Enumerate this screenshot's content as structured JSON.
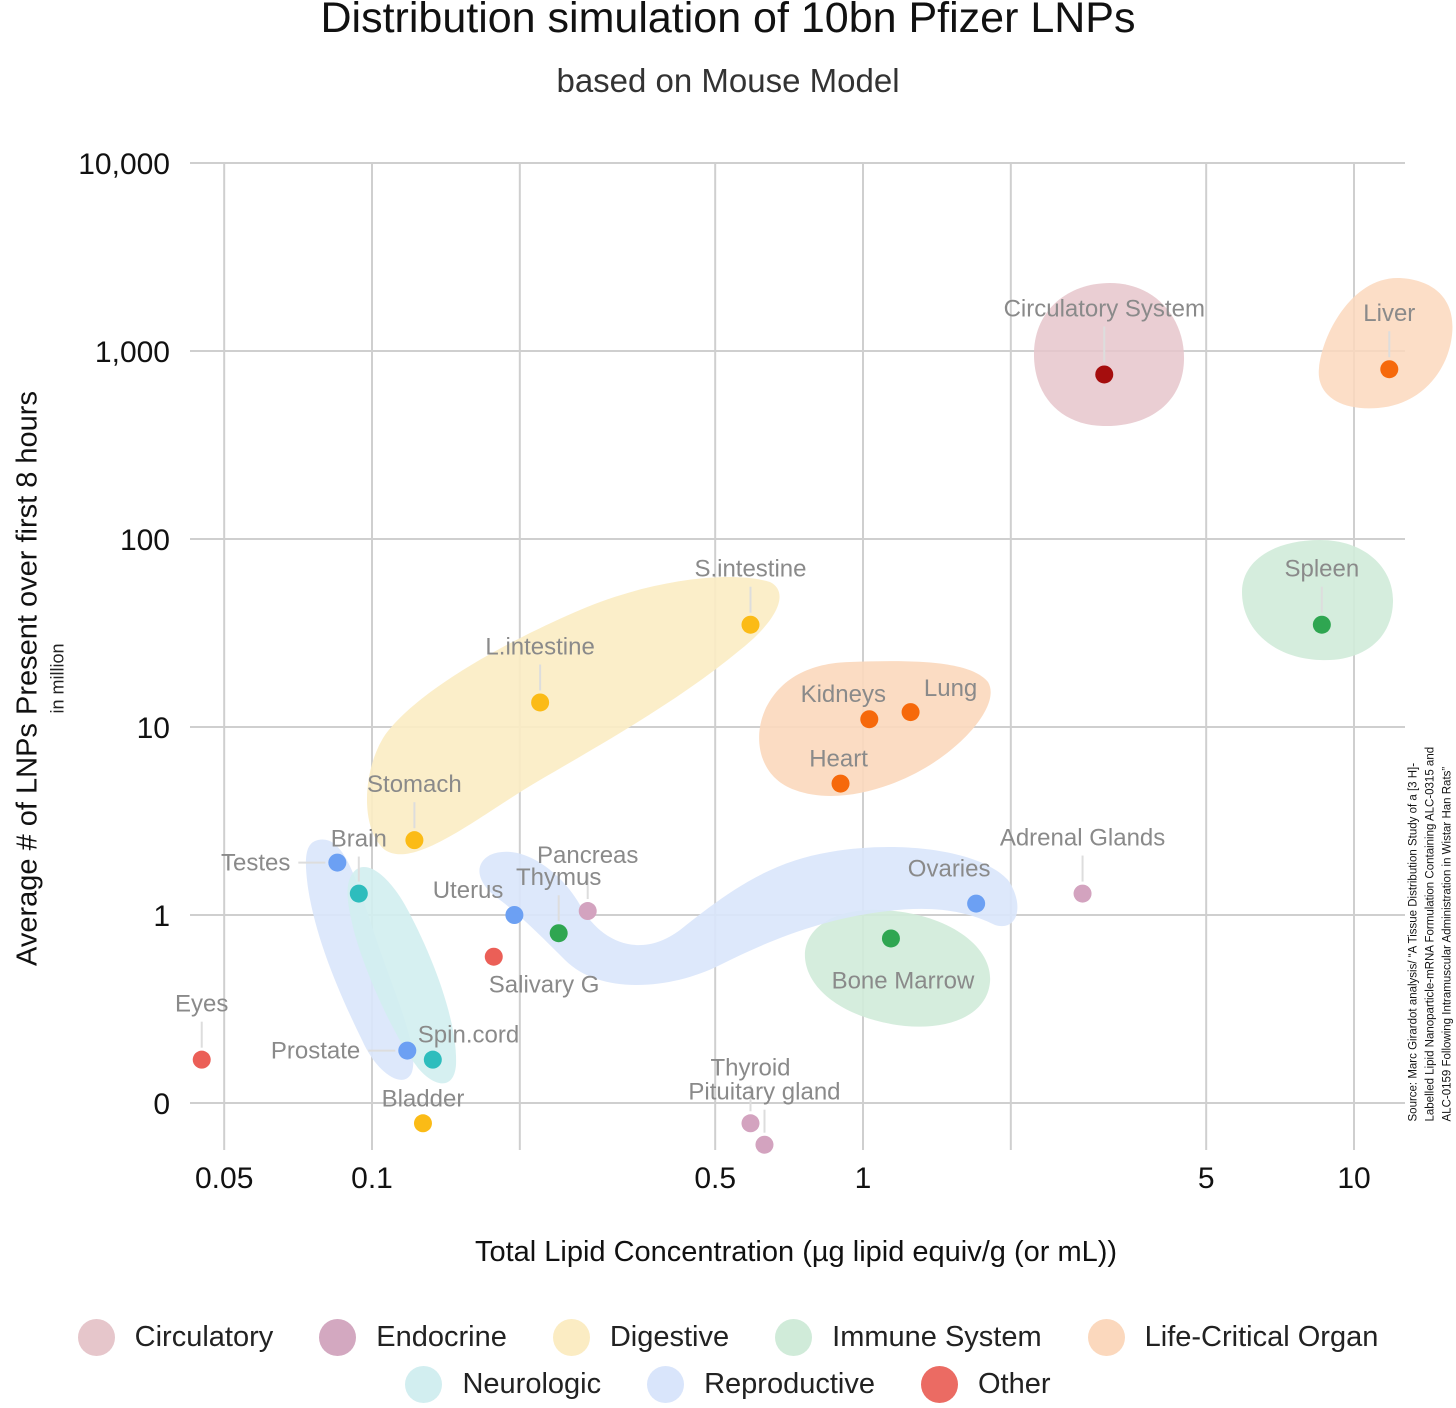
{
  "chart_data": {
    "type": "scatter",
    "title": "Distribution simulation of  10bn Pfizer LNPs",
    "subtitle": "based on Mouse Model",
    "xlabel": "Total Lipid Concentration (µg lipid equiv/g (or mL))",
    "ylabel": "Average # of LNPs Present over first 8 hours",
    "ylabel_unit": "in million",
    "x_scale": "log",
    "y_scale": "log",
    "xlim": [
      0.04,
      13
    ],
    "ylim": [
      0.0,
      10000
    ],
    "x_ticks": [
      0.05,
      0.1,
      0.5,
      1,
      5,
      10
    ],
    "x_tick_labels": [
      "0.05",
      "0.1",
      "0.5",
      "1",
      "5",
      "10"
    ],
    "x_gridlines": [
      0.05,
      0.1,
      0.2,
      0.5,
      1,
      2,
      5,
      10
    ],
    "y_ticks": [
      0.1,
      1,
      10,
      100,
      1000,
      10000
    ],
    "y_tick_labels": [
      "0",
      "1",
      "10",
      "100",
      "1,000",
      "10,000"
    ],
    "grid": true,
    "legend_position": "bottom",
    "categories": [
      {
        "name": "Circulatory",
        "color": "#e6c6cb"
      },
      {
        "name": "Endocrine",
        "color": "#d3a8c0"
      },
      {
        "name": "Digestive",
        "color": "#fbecc3"
      },
      {
        "name": "Immune System",
        "color": "#d0ebd9"
      },
      {
        "name": "Life-Critical Organ",
        "color": "#fbd8bd"
      },
      {
        "name": "Neurologic",
        "color": "#d2eef0"
      },
      {
        "name": "Reproductive",
        "color": "#d9e5fb"
      },
      {
        "name": "Other",
        "color": "#eb6b63"
      }
    ],
    "points": [
      {
        "label": "Circulatory System",
        "x": 3.1,
        "y": 750,
        "category": "Circulatory",
        "color": "#a50d0d"
      },
      {
        "label": "Liver",
        "x": 11.8,
        "y": 800,
        "category": "Life-Critical Organ",
        "color": "#f6690b"
      },
      {
        "label": "Spleen",
        "x": 8.6,
        "y": 35,
        "category": "Immune System",
        "color": "#2fa651"
      },
      {
        "label": "S.intestine",
        "x": 0.59,
        "y": 35,
        "category": "Digestive",
        "color": "#fbbb16"
      },
      {
        "label": "L.intestine",
        "x": 0.22,
        "y": 13.5,
        "category": "Digestive",
        "color": "#fbbb16"
      },
      {
        "label": "Kidneys",
        "x": 1.03,
        "y": 11,
        "category": "Life-Critical Organ",
        "color": "#f6690b"
      },
      {
        "label": "Lung",
        "x": 1.25,
        "y": 12,
        "category": "Life-Critical Organ",
        "color": "#f6690b"
      },
      {
        "label": "Heart",
        "x": 0.9,
        "y": 5,
        "category": "Life-Critical Organ",
        "color": "#f6690b"
      },
      {
        "label": "Stomach",
        "x": 0.122,
        "y": 2.5,
        "category": "Digestive",
        "color": "#fbbb16"
      },
      {
        "label": "Adrenal Glands",
        "x": 2.8,
        "y": 1.3,
        "category": "Endocrine",
        "color": "#d3a3bf"
      },
      {
        "label": "Ovaries",
        "x": 1.7,
        "y": 1.15,
        "category": "Reproductive",
        "color": "#6ca0f3"
      },
      {
        "label": "Bone Marrow",
        "x": 1.14,
        "y": 0.75,
        "category": "Immune System",
        "color": "#2fa651"
      },
      {
        "label": "Testes",
        "x": 0.085,
        "y": 1.9,
        "category": "Reproductive",
        "color": "#6ca0f3"
      },
      {
        "label": "Brain",
        "x": 0.094,
        "y": 1.3,
        "category": "Neurologic",
        "color": "#2ebdbd"
      },
      {
        "label": "Pancreas",
        "x": 0.275,
        "y": 1.05,
        "category": "Endocrine",
        "color": "#d3a3bf"
      },
      {
        "label": "Thymus",
        "x": 0.24,
        "y": 0.8,
        "category": "Immune System",
        "color": "#2fa651"
      },
      {
        "label": "Uterus",
        "x": 0.195,
        "y": 1.0,
        "category": "Reproductive",
        "color": "#6ca0f3"
      },
      {
        "label": "Salivary G",
        "x": 0.177,
        "y": 0.6,
        "category": "Other",
        "color": "#eb5f57"
      },
      {
        "label": "Eyes",
        "x": 0.045,
        "y": 0.17,
        "category": "Other",
        "color": "#eb5f57"
      },
      {
        "label": "Prostate",
        "x": 0.118,
        "y": 0.19,
        "category": "Reproductive",
        "color": "#6ca0f3"
      },
      {
        "label": "Spin.cord",
        "x": 0.133,
        "y": 0.17,
        "category": "Neurologic",
        "color": "#2ebdbd"
      },
      {
        "label": "Bladder",
        "x": 0.127,
        "y": 0.078,
        "category": "Digestive",
        "color": "#fbbb16"
      },
      {
        "label": "Thyroid",
        "x": 0.59,
        "y": 0.078,
        "category": "Endocrine",
        "color": "#d3a3bf"
      },
      {
        "label": "Pituitary gland",
        "x": 0.63,
        "y": 0.06,
        "category": "Endocrine",
        "color": "#d3a3bf"
      }
    ],
    "source_note": "Source: Marc Girardot analysis/ “A Tissue Distribution Study of a [3 H]-Labelled Lipid Nanoparticle-mRNA Formulation Containing ALC-0315 and ALC-0159 Following Intramuscular Administration in Wistar Han Rats”"
  }
}
